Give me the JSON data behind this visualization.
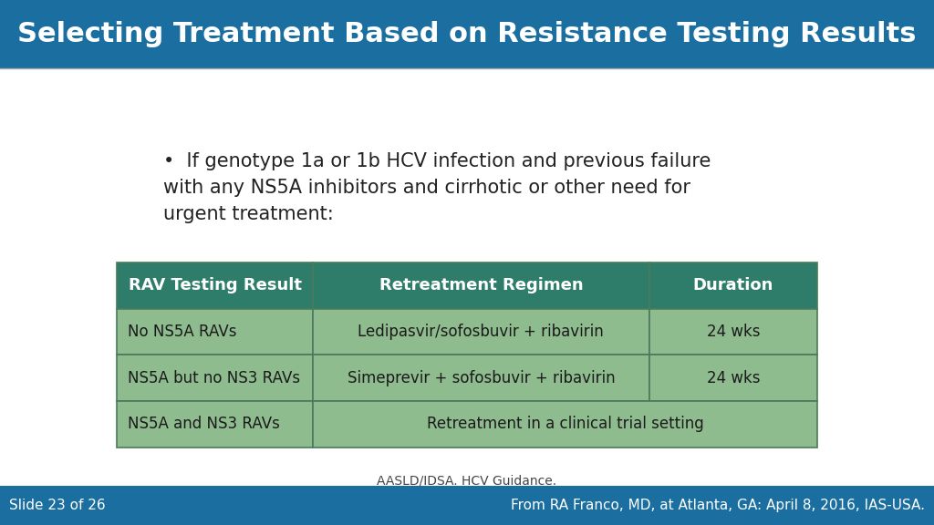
{
  "title": "Selecting Treatment Based on Resistance Testing Results",
  "title_bg": "#1a6fa0",
  "title_color": "#ffffff",
  "slide_bg": "#ffffff",
  "body_text": "If genotype 1a or 1b HCV infection and previous failure\nwith any NS5A inhibitors and cirrhotic or other need for\nurgent treatment:",
  "table_header_bg": "#2e7d6b",
  "table_row_bg": "#8fbc8f",
  "table_border": "#4a7a5a",
  "table_header_color": "#ffffff",
  "table_row_color": "#1a1a1a",
  "table_cols": [
    "RAV Testing Result",
    "Retreatment Regimen",
    "Duration"
  ],
  "table_rows": [
    [
      "No NS5A RAVs",
      "Ledipasvir/sofosbuvir + ribavirin",
      "24 wks"
    ],
    [
      "NS5A but no NS3 RAVs",
      "Simeprevir + sofosbuvir + ribavirin",
      "24 wks"
    ],
    [
      "NS5A and NS3 RAVs",
      "Retreatment in a clinical trial setting",
      ""
    ]
  ],
  "footnote": "AASLD/IDSA. HCV Guidance.",
  "footer_bg": "#1a6fa0",
  "footer_left": "Slide 23 of 26",
  "footer_right": "From RA Franco, MD, at Atlanta, GA: April 8, 2016, IAS-USA.",
  "footer_color": "#ffffff"
}
